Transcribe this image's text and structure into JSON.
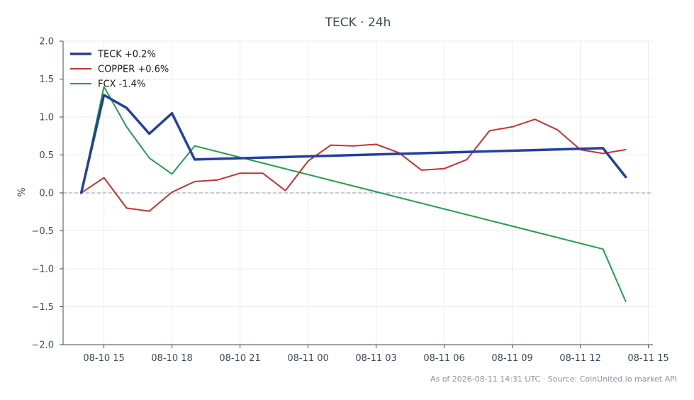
{
  "chart_data": {
    "type": "line",
    "title": "TECK · 24h",
    "xlabel": "",
    "ylabel": "%",
    "ylim": [
      -2.0,
      2.0
    ],
    "xlim": [
      "2026-08-10 13:12",
      "2026-08-11 15:12"
    ],
    "yticks": [
      "2.0",
      "1.5",
      "1.0",
      "0.5",
      "0.0",
      "−0.5",
      "−1.0",
      "−1.5",
      "−2.0"
    ],
    "yticks_values": [
      2.0,
      1.5,
      1.0,
      0.5,
      0.0,
      -0.5,
      -1.0,
      -1.5,
      -2.0
    ],
    "xticks": [
      "08-10 15",
      "08-10 18",
      "08-10 21",
      "08-11 00",
      "08-11 03",
      "08-11 06",
      "08-11 09",
      "08-11 12",
      "08-11 15"
    ],
    "xticks_values": [
      "2026-08-10 15:00",
      "2026-08-10 18:00",
      "2026-08-10 21:00",
      "2026-08-11 00:00",
      "2026-08-11 03:00",
      "2026-08-11 06:00",
      "2026-08-11 09:00",
      "2026-08-11 12:00",
      "2026-08-11 15:00"
    ],
    "grid": true,
    "baseline": 0.0,
    "legend_position": "top-left",
    "series": [
      {
        "name": "TECK +0.2%",
        "color": "#2340a0",
        "width": 3.5,
        "x": [
          "2026-08-10 14:00",
          "2026-08-10 15:00",
          "2026-08-10 16:00",
          "2026-08-10 17:00",
          "2026-08-10 18:00",
          "2026-08-10 19:00",
          "2026-08-11 13:00",
          "2026-08-11 14:00"
        ],
        "y": [
          0.0,
          1.29,
          1.12,
          0.78,
          1.05,
          0.44,
          0.59,
          0.21
        ]
      },
      {
        "name": "COPPER +0.6%",
        "color": "#c83232",
        "width": 2,
        "x": [
          "2026-08-10 14:00",
          "2026-08-10 15:00",
          "2026-08-10 16:00",
          "2026-08-10 17:00",
          "2026-08-10 18:00",
          "2026-08-10 19:00",
          "2026-08-10 20:00",
          "2026-08-10 21:00",
          "2026-08-10 22:00",
          "2026-08-10 23:00",
          "2026-08-11 00:00",
          "2026-08-11 01:00",
          "2026-08-11 02:00",
          "2026-08-11 03:00",
          "2026-08-11 04:00",
          "2026-08-11 05:00",
          "2026-08-11 06:00",
          "2026-08-11 07:00",
          "2026-08-11 08:00",
          "2026-08-11 09:00",
          "2026-08-11 10:00",
          "2026-08-11 11:00",
          "2026-08-11 12:00",
          "2026-08-11 13:00",
          "2026-08-11 14:00"
        ],
        "y": [
          0.0,
          0.2,
          -0.2,
          -0.24,
          0.01,
          0.15,
          0.17,
          0.26,
          0.26,
          0.03,
          0.42,
          0.63,
          0.62,
          0.64,
          0.53,
          0.3,
          0.32,
          0.44,
          0.82,
          0.87,
          0.97,
          0.83,
          0.57,
          0.52,
          0.57
        ]
      },
      {
        "name": "FCX -1.4%",
        "color": "#22a04b",
        "width": 2,
        "x": [
          "2026-08-10 14:00",
          "2026-08-10 15:00",
          "2026-08-10 16:00",
          "2026-08-10 17:00",
          "2026-08-10 18:00",
          "2026-08-10 19:00",
          "2026-08-11 13:00",
          "2026-08-11 14:00"
        ],
        "y": [
          0.0,
          1.4,
          0.87,
          0.46,
          0.25,
          0.62,
          -0.74,
          -1.43
        ]
      }
    ]
  },
  "footer": "As of 2026-08-11 14:31 UTC · Source: CoinUnited.io market API"
}
